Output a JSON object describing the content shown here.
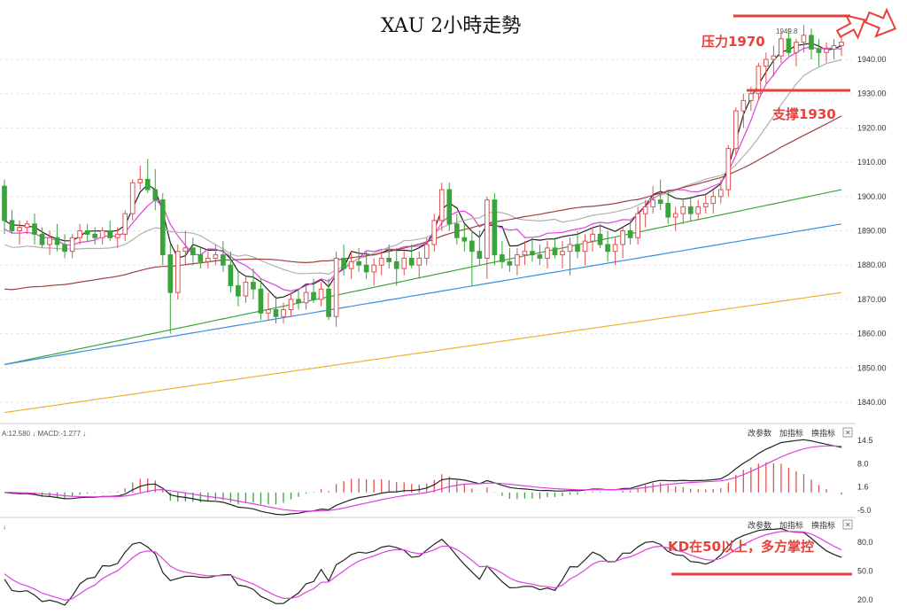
{
  "title": "XAU 2小時走勢",
  "price_panel": {
    "y_ticks": [
      "1940.00",
      "1930.00",
      "1920.00",
      "1910.00",
      "1900.00",
      "1890.00",
      "1880.00",
      "1870.00",
      "1860.00",
      "1850.00",
      "1840.00"
    ],
    "top_price_label": "1949.8",
    "resistance_label": "压力1970",
    "support_label": "支撑1930"
  },
  "macd_panel": {
    "header": "A:12.580 ↓ MACD:-1.277 ↓",
    "y_ticks": [
      "14.5",
      "8.0",
      "1.6",
      "-5.0"
    ],
    "tools": [
      "改参数",
      "加指标",
      "换指标"
    ],
    "close": "✕"
  },
  "kd_panel": {
    "arrow": "↓",
    "y_ticks": [
      "80.0",
      "50.0",
      "20.0"
    ],
    "tools": [
      "改参数",
      "加指标",
      "换指标"
    ],
    "close": "✕",
    "annotation": "KD在50以上，多方掌控"
  },
  "colors": {
    "up_candle": "#e05050",
    "down_candle": "#3aa43a",
    "annotation": "#e8403a"
  },
  "chart_data": {
    "type": "candlestick",
    "title": "XAU 2小時走勢",
    "ylim": [
      1836,
      1952
    ],
    "candles": [
      [
        1903,
        1905,
        1889,
        1893
      ],
      [
        1893,
        1896,
        1889,
        1890
      ],
      [
        1890,
        1893,
        1886,
        1891
      ],
      [
        1891,
        1893,
        1889,
        1892
      ],
      [
        1892,
        1895,
        1886,
        1889
      ],
      [
        1889,
        1891,
        1885,
        1886
      ],
      [
        1886,
        1890,
        1883,
        1888
      ],
      [
        1888,
        1892,
        1884,
        1886
      ],
      [
        1886,
        1889,
        1882,
        1884
      ],
      [
        1884,
        1889,
        1882,
        1888
      ],
      [
        1888,
        1892,
        1886,
        1890
      ],
      [
        1890,
        1892,
        1887,
        1889
      ],
      [
        1889,
        1891,
        1886,
        1888
      ],
      [
        1888,
        1891,
        1886,
        1890
      ],
      [
        1890,
        1893,
        1887,
        1888
      ],
      [
        1888,
        1891,
        1885,
        1889
      ],
      [
        1889,
        1896,
        1887,
        1895
      ],
      [
        1895,
        1905,
        1893,
        1904
      ],
      [
        1904,
        1909,
        1902,
        1905
      ],
      [
        1905,
        1911,
        1901,
        1902
      ],
      [
        1902,
        1908,
        1896,
        1899
      ],
      [
        1899,
        1901,
        1880,
        1883
      ],
      [
        1883,
        1886,
        1860,
        1872
      ],
      [
        1872,
        1886,
        1870,
        1884
      ],
      [
        1884,
        1890,
        1880,
        1885
      ],
      [
        1885,
        1888,
        1880,
        1883
      ],
      [
        1883,
        1885,
        1879,
        1881
      ],
      [
        1881,
        1884,
        1879,
        1882
      ],
      [
        1882,
        1886,
        1880,
        1883
      ],
      [
        1883,
        1887,
        1878,
        1880
      ],
      [
        1880,
        1884,
        1872,
        1874
      ],
      [
        1874,
        1878,
        1868,
        1871
      ],
      [
        1871,
        1877,
        1869,
        1875
      ],
      [
        1875,
        1879,
        1870,
        1873
      ],
      [
        1873,
        1876,
        1864,
        1866
      ],
      [
        1866,
        1872,
        1864,
        1867
      ],
      [
        1867,
        1871,
        1863,
        1865
      ],
      [
        1865,
        1869,
        1863,
        1867
      ],
      [
        1867,
        1872,
        1865,
        1870
      ],
      [
        1870,
        1873,
        1867,
        1869
      ],
      [
        1869,
        1874,
        1867,
        1872
      ],
      [
        1872,
        1876,
        1869,
        1870
      ],
      [
        1870,
        1875,
        1868,
        1873
      ],
      [
        1873,
        1876,
        1864,
        1865
      ],
      [
        1865,
        1884,
        1862,
        1882
      ],
      [
        1882,
        1886,
        1877,
        1879
      ],
      [
        1879,
        1884,
        1876,
        1881
      ],
      [
        1881,
        1885,
        1878,
        1880
      ],
      [
        1880,
        1884,
        1876,
        1878
      ],
      [
        1878,
        1882,
        1874,
        1880
      ],
      [
        1880,
        1884,
        1877,
        1882
      ],
      [
        1882,
        1886,
        1879,
        1881
      ],
      [
        1881,
        1885,
        1874,
        1879
      ],
      [
        1879,
        1884,
        1877,
        1882
      ],
      [
        1882,
        1886,
        1879,
        1880
      ],
      [
        1880,
        1884,
        1876,
        1882
      ],
      [
        1882,
        1888,
        1880,
        1886
      ],
      [
        1886,
        1895,
        1884,
        1893
      ],
      [
        1893,
        1904,
        1890,
        1902
      ],
      [
        1902,
        1904,
        1890,
        1892
      ],
      [
        1892,
        1895,
        1886,
        1888
      ],
      [
        1888,
        1892,
        1884,
        1887
      ],
      [
        1887,
        1890,
        1874,
        1884
      ],
      [
        1884,
        1890,
        1880,
        1882
      ],
      [
        1882,
        1900,
        1876,
        1899
      ],
      [
        1899,
        1901,
        1880,
        1883
      ],
      [
        1883,
        1887,
        1879,
        1881
      ],
      [
        1881,
        1885,
        1878,
        1880
      ],
      [
        1880,
        1885,
        1877,
        1883
      ],
      [
        1883,
        1887,
        1880,
        1884
      ],
      [
        1884,
        1888,
        1881,
        1883
      ],
      [
        1883,
        1886,
        1880,
        1882
      ],
      [
        1882,
        1887,
        1879,
        1885
      ],
      [
        1885,
        1888,
        1882,
        1883
      ],
      [
        1883,
        1887,
        1879,
        1884
      ],
      [
        1884,
        1888,
        1877,
        1886
      ],
      [
        1886,
        1890,
        1882,
        1884
      ],
      [
        1884,
        1889,
        1880,
        1887
      ],
      [
        1887,
        1891,
        1884,
        1889
      ],
      [
        1889,
        1892,
        1885,
        1886
      ],
      [
        1886,
        1890,
        1881,
        1884
      ],
      [
        1884,
        1888,
        1880,
        1886
      ],
      [
        1886,
        1891,
        1882,
        1890
      ],
      [
        1890,
        1893,
        1886,
        1888
      ],
      [
        1888,
        1897,
        1886,
        1895
      ],
      [
        1895,
        1899,
        1891,
        1897
      ],
      [
        1897,
        1903,
        1895,
        1899
      ],
      [
        1899,
        1905,
        1896,
        1898
      ],
      [
        1898,
        1902,
        1892,
        1894
      ],
      [
        1894,
        1897,
        1890,
        1895
      ],
      [
        1895,
        1899,
        1892,
        1897
      ],
      [
        1897,
        1900,
        1893,
        1895
      ],
      [
        1895,
        1899,
        1893,
        1897
      ],
      [
        1897,
        1901,
        1895,
        1898
      ],
      [
        1898,
        1902,
        1895,
        1900
      ],
      [
        1900,
        1905,
        1898,
        1902
      ],
      [
        1902,
        1915,
        1900,
        1914
      ],
      [
        1914,
        1926,
        1912,
        1925
      ],
      [
        1925,
        1930,
        1920,
        1928
      ],
      [
        1928,
        1932,
        1925,
        1930
      ],
      [
        1930,
        1939,
        1928,
        1938
      ],
      [
        1938,
        1942,
        1933,
        1940
      ],
      [
        1940,
        1944,
        1935,
        1941
      ],
      [
        1941,
        1948,
        1939,
        1946
      ],
      [
        1946,
        1949,
        1941,
        1942
      ],
      [
        1942,
        1946,
        1938,
        1945
      ],
      [
        1945,
        1950,
        1942,
        1947
      ],
      [
        1947,
        1949,
        1940,
        1943
      ],
      [
        1943,
        1946,
        1938,
        1942
      ],
      [
        1942,
        1945,
        1939,
        1943
      ],
      [
        1943,
        1946,
        1940,
        1944
      ],
      [
        1944,
        1947,
        1941,
        1945
      ]
    ],
    "ma_lines": [
      {
        "color": "#222222",
        "start": 1893,
        "end": 1944
      },
      {
        "color": "#e040e0",
        "start": 1878,
        "end": 1941
      },
      {
        "color": "#b0b0b0",
        "start": 1872,
        "end": 1932
      },
      {
        "color": "#a04040",
        "start": 1863,
        "end": 1920
      },
      {
        "color": "#3aa43a",
        "start": 1851,
        "end": 1902
      },
      {
        "color": "#3a8ee0",
        "start": 1851,
        "end": 1892
      },
      {
        "color": "#f0b030",
        "start": 1837,
        "end": 1872
      }
    ],
    "resistance": 1970,
    "support": 1930,
    "macd": {
      "dif": 12.58,
      "macd": -1.277,
      "ylim": [
        -5.0,
        14.5
      ]
    },
    "kd": {
      "ylim": [
        20,
        80
      ],
      "threshold": 50
    }
  }
}
